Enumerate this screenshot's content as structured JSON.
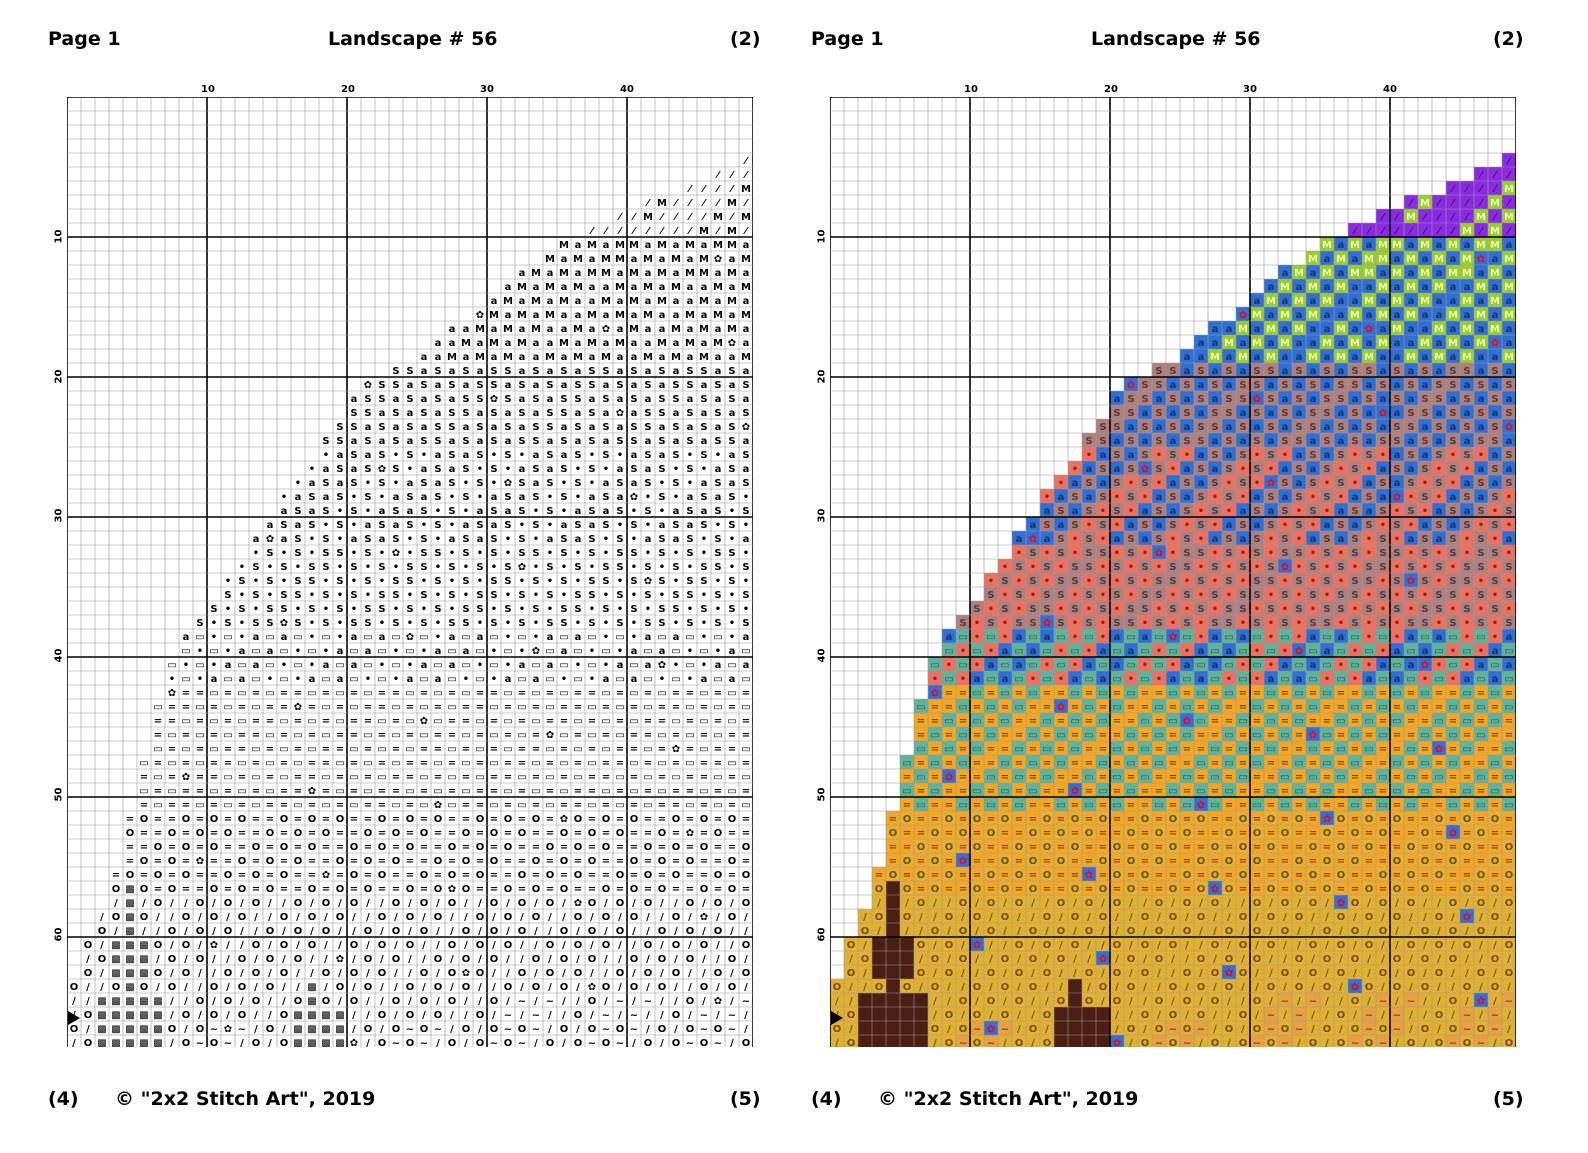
{
  "panels": [
    {
      "variant": "symbols",
      "header": {
        "page": "Page 1",
        "title": "Landscape # 56",
        "number": "(2)"
      },
      "footer": {
        "left": "(4)",
        "copyright": "© \"2x2 Stitch Art\", 2019",
        "right": "(5)"
      }
    },
    {
      "variant": "color",
      "header": {
        "page": "Page 1",
        "title": "Landscape # 56",
        "number": "(2)"
      },
      "footer": {
        "left": "(4)",
        "copyright": "© \"2x2 Stitch Art\", 2019",
        "right": "(5)"
      }
    }
  ],
  "grid": {
    "cols": 49,
    "rows": 68,
    "col_ticks": [
      "10",
      "20",
      "30",
      "40"
    ],
    "row_ticks": [
      "10",
      "20",
      "30",
      "40",
      "50",
      "60"
    ],
    "marker_row": 66
  },
  "palette": {
    "brush": {
      "symbol": "⁄",
      "color": "#8a2be2"
    },
    "moss": {
      "symbol": "M",
      "color": "#9acd32"
    },
    "swirl": {
      "symbol": "a",
      "color": "#2f6fd6"
    },
    "mauve": {
      "symbol": "S",
      "color": "#b08080"
    },
    "drop": {
      "symbol": "•",
      "color": "#f07060"
    },
    "boxes": {
      "symbol": "▭",
      "color": "#5fb39a"
    },
    "bars": {
      "symbol": "=",
      "color": "#f5a623"
    },
    "rings": {
      "symbol": "O",
      "color": "#e8b030"
    },
    "slash": {
      "symbol": "/",
      "color": "#e0b030"
    },
    "tilde": {
      "symbol": "~",
      "color": "#e8a040"
    },
    "tree": {
      "symbol": "▩",
      "color": "#4a1e12"
    },
    "flower": {
      "symbol": "✿",
      "color": "#ff0000"
    }
  }
}
